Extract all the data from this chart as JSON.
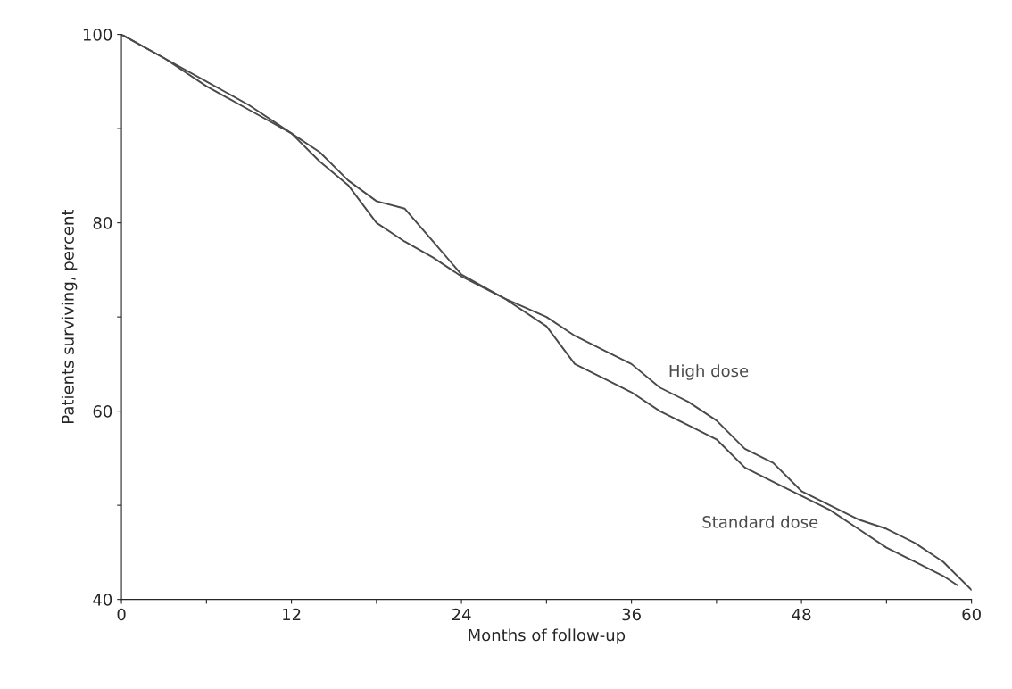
{
  "chart_data": {
    "type": "line",
    "xlabel": "Months of follow-up",
    "ylabel": "Patients surviving, percent",
    "xlim": [
      0,
      60
    ],
    "ylim": [
      40,
      100
    ],
    "xticks": [
      0,
      {
        "value": 6,
        "label": null
      },
      12,
      {
        "value": 18,
        "label": null
      },
      24,
      {
        "value": 30,
        "label": null
      },
      36,
      {
        "value": 42,
        "label": null
      },
      48,
      {
        "value": 54,
        "label": null
      },
      60
    ],
    "yticks": [
      40,
      {
        "value": 50,
        "label": null
      },
      60,
      {
        "value": 70,
        "label": null
      },
      80,
      {
        "value": 90,
        "label": null
      },
      100
    ],
    "grid": false,
    "legend": false,
    "marker": "none",
    "line_style": "solid",
    "series": [
      {
        "name": "High dose",
        "color": "#4a4a4a",
        "x": [
          0,
          3,
          6,
          9,
          12,
          14,
          16,
          18,
          20,
          22,
          24,
          27,
          30,
          32,
          34,
          36,
          38,
          40,
          42,
          44,
          46,
          48,
          50,
          52,
          54,
          56,
          58,
          60
        ],
        "values": [
          100,
          97.5,
          95,
          92.5,
          89.5,
          87.5,
          84.5,
          82.3,
          81.5,
          78,
          74.5,
          72,
          70,
          68,
          66.5,
          65,
          62.5,
          61,
          59,
          56,
          54.5,
          51.5,
          50,
          48.5,
          47.5,
          46,
          44,
          41
        ]
      },
      {
        "name": "Standard dose",
        "color": "#4a4a4a",
        "x": [
          0,
          3,
          6,
          9,
          12,
          14,
          16,
          18,
          20,
          22,
          24,
          27,
          30,
          32,
          34,
          36,
          38,
          40,
          42,
          44,
          46,
          48,
          50,
          52,
          54,
          56,
          58,
          59
        ],
        "values": [
          100,
          97.5,
          94.5,
          92,
          89.5,
          86.5,
          84,
          80,
          78,
          76.3,
          74.3,
          72,
          69,
          65,
          63.5,
          62,
          60,
          58.5,
          57,
          54,
          52.5,
          51,
          49.5,
          47.5,
          45.5,
          44,
          42.5,
          41.5
        ]
      }
    ]
  }
}
